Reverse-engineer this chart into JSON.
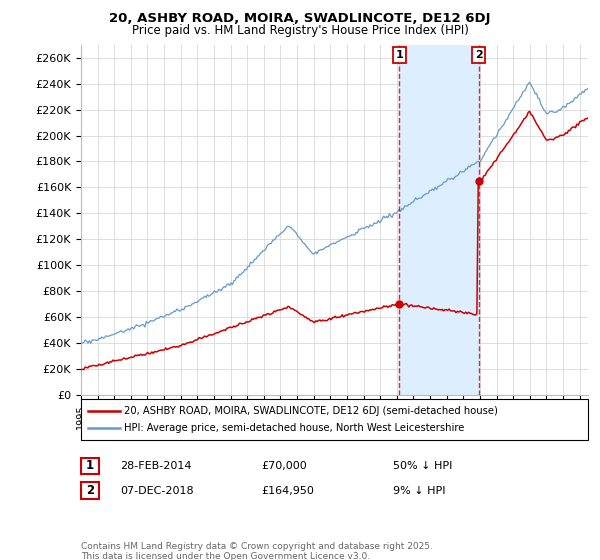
{
  "title1": "20, ASHBY ROAD, MOIRA, SWADLINCOTE, DE12 6DJ",
  "title2": "Price paid vs. HM Land Registry's House Price Index (HPI)",
  "ylim": [
    0,
    270000
  ],
  "yticks": [
    0,
    20000,
    40000,
    60000,
    80000,
    100000,
    120000,
    140000,
    160000,
    180000,
    200000,
    220000,
    240000,
    260000
  ],
  "ytick_labels": [
    "£0",
    "£20K",
    "£40K",
    "£60K",
    "£80K",
    "£100K",
    "£120K",
    "£140K",
    "£160K",
    "£180K",
    "£200K",
    "£220K",
    "£240K",
    "£260K"
  ],
  "xlim_start": 1995.0,
  "xlim_end": 2025.5,
  "sale1_date": 2014.16,
  "sale1_price": 70000,
  "sale1_label": "1",
  "sale1_info": "28-FEB-2014",
  "sale1_price_str": "£70,000",
  "sale1_pct": "50% ↓ HPI",
  "sale2_date": 2018.92,
  "sale2_price": 164950,
  "sale2_label": "2",
  "sale2_info": "07-DEC-2018",
  "sale2_price_str": "£164,950",
  "sale2_pct": "9% ↓ HPI",
  "line_color_paid": "#cc0000",
  "line_color_hpi": "#6699cc",
  "shade_color": "#ddeeff",
  "grid_color": "#dddddd",
  "background_color": "#ffffff",
  "legend_label1": "20, ASHBY ROAD, MOIRA, SWADLINCOTE, DE12 6DJ (semi-detached house)",
  "legend_label2": "HPI: Average price, semi-detached house, North West Leicestershire",
  "footer": "Contains HM Land Registry data © Crown copyright and database right 2025.\nThis data is licensed under the Open Government Licence v3.0."
}
